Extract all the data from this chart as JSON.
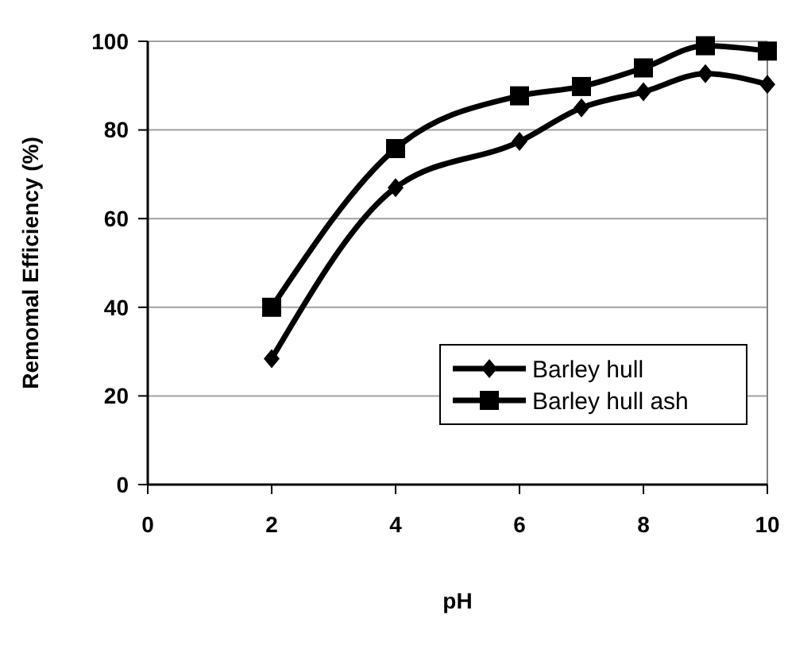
{
  "chart_data": {
    "type": "line",
    "xlabel": "pH",
    "ylabel": "Remomal Efficiency (%)",
    "xlim": [
      0,
      10
    ],
    "xticks": [
      0,
      2,
      4,
      6,
      8,
      10
    ],
    "ylim": [
      0,
      100
    ],
    "yticks": [
      0,
      20,
      40,
      60,
      80,
      100
    ],
    "x": [
      2,
      4,
      6,
      7,
      8,
      9,
      10
    ],
    "series": [
      {
        "name": "Barley hull",
        "color": "#000000",
        "marker": "diamond",
        "values": [
          28.4,
          67,
          77.4,
          85,
          88.6,
          92.7,
          90.3
        ]
      },
      {
        "name": "Barley hull ash",
        "color": "#000000",
        "marker": "square",
        "values": [
          40,
          75.8,
          87.7,
          89.8,
          94,
          99,
          97.8
        ]
      }
    ],
    "grid": "y",
    "legend": "bottom right",
    "line_style": "solid"
  }
}
